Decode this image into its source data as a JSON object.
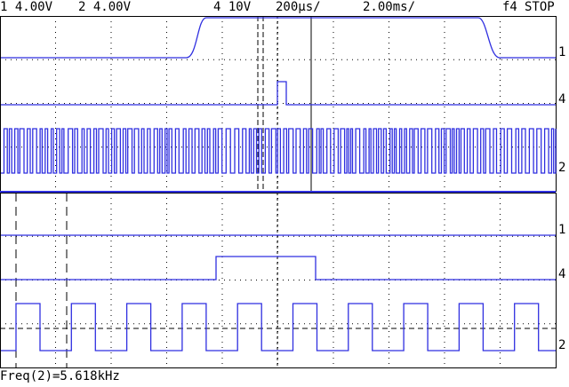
{
  "header": {
    "channel1": "1 4.00V",
    "channel2": "2 4.00V",
    "channel4": "4 10V",
    "timebase_zoom": "200µs/",
    "timebase_main": "2.00ms/",
    "trigger": "f4",
    "status": "STOP"
  },
  "markers": {
    "upper": [
      "1",
      "4",
      "2"
    ],
    "lower": [
      "1",
      "4",
      "2"
    ]
  },
  "footer": "Freq(2)=5.618kHz"
}
